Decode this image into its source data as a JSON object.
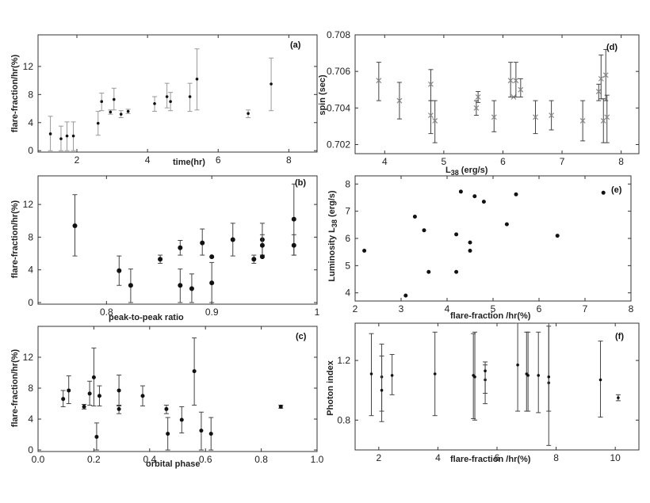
{
  "figure": {
    "description_colors": {
      "axis": "#333333",
      "marker": "#111111",
      "marker_gray": "#888888"
    }
  },
  "chart_data": [
    {
      "id": "a",
      "type": "scatter",
      "tag": "(a)",
      "xlabel": "time(hr)",
      "ylabel": "flare-fraction/hr(%)",
      "xlim": [
        0.9,
        8.8
      ],
      "ylim": [
        -0.2,
        16.5
      ],
      "xticks": [
        2,
        4,
        6,
        8
      ],
      "yticks": [
        0,
        4,
        8,
        12
      ],
      "marker": "small",
      "error_style": "light",
      "points": [
        {
          "x": 1.25,
          "y": 2.4,
          "lo": 0.0,
          "hi": 4.9
        },
        {
          "x": 1.55,
          "y": 1.7,
          "lo": 0.0,
          "hi": 3.5
        },
        {
          "x": 1.72,
          "y": 2.1,
          "lo": 0.0,
          "hi": 4.1
        },
        {
          "x": 1.9,
          "y": 2.1,
          "lo": 0.0,
          "hi": 4.1
        },
        {
          "x": 2.6,
          "y": 3.9,
          "lo": 2.2,
          "hi": 5.6
        },
        {
          "x": 2.7,
          "y": 7.0,
          "lo": 5.7,
          "hi": 8.2
        },
        {
          "x": 2.95,
          "y": 5.5,
          "lo": 5.2,
          "hi": 5.8
        },
        {
          "x": 3.05,
          "y": 7.3,
          "lo": 5.8,
          "hi": 8.9
        },
        {
          "x": 3.25,
          "y": 5.2,
          "lo": 4.7,
          "hi": 5.7
        },
        {
          "x": 3.45,
          "y": 5.6,
          "lo": 5.3,
          "hi": 5.9
        },
        {
          "x": 4.2,
          "y": 6.7,
          "lo": 5.6,
          "hi": 7.7
        },
        {
          "x": 4.55,
          "y": 7.7,
          "lo": 6.1,
          "hi": 9.6
        },
        {
          "x": 4.65,
          "y": 7.0,
          "lo": 5.7,
          "hi": 8.3
        },
        {
          "x": 5.2,
          "y": 7.7,
          "lo": 5.6,
          "hi": 9.6
        },
        {
          "x": 5.4,
          "y": 10.2,
          "lo": 5.8,
          "hi": 14.5
        },
        {
          "x": 6.85,
          "y": 5.3,
          "lo": 4.7,
          "hi": 5.8
        },
        {
          "x": 7.5,
          "y": 9.5,
          "lo": 5.7,
          "hi": 13.2
        }
      ]
    },
    {
      "id": "b",
      "type": "scatter",
      "tag": "(b)",
      "xlabel": "peak-to-peak ratio",
      "ylabel": "flare-fraction/hr(%)",
      "xlim": [
        0.735,
        1.0
      ],
      "ylim": [
        -0.2,
        15.5
      ],
      "xticks": [
        0.8,
        0.9,
        1.0
      ],
      "yticks": [
        0,
        4,
        8,
        12
      ],
      "marker": "large",
      "error_style": "dark",
      "points": [
        {
          "x": 0.77,
          "y": 9.4,
          "lo": 5.7,
          "hi": 13.2
        },
        {
          "x": 0.812,
          "y": 3.9,
          "lo": 2.1,
          "hi": 5.7
        },
        {
          "x": 0.823,
          "y": 2.1,
          "lo": 0.0,
          "hi": 4.1
        },
        {
          "x": 0.851,
          "y": 5.3,
          "lo": 4.8,
          "hi": 5.8
        },
        {
          "x": 0.87,
          "y": 6.7,
          "lo": 5.8,
          "hi": 7.6
        },
        {
          "x": 0.87,
          "y": 2.1,
          "lo": 0.0,
          "hi": 4.1
        },
        {
          "x": 0.881,
          "y": 1.7,
          "lo": 0.0,
          "hi": 3.5
        },
        {
          "x": 0.891,
          "y": 7.3,
          "lo": 5.8,
          "hi": 9.0
        },
        {
          "x": 0.9,
          "y": 5.6,
          "lo": 5.6,
          "hi": 5.6
        },
        {
          "x": 0.9,
          "y": 2.4,
          "lo": 0.0,
          "hi": 4.9
        },
        {
          "x": 0.92,
          "y": 7.7,
          "lo": 5.7,
          "hi": 9.7
        },
        {
          "x": 0.94,
          "y": 5.3,
          "lo": 4.8,
          "hi": 5.8
        },
        {
          "x": 0.948,
          "y": 7.7,
          "lo": 5.8,
          "hi": 9.7
        },
        {
          "x": 0.948,
          "y": 7.0,
          "lo": 5.8,
          "hi": 8.3
        },
        {
          "x": 0.948,
          "y": 5.6,
          "lo": 5.6,
          "hi": 5.6
        },
        {
          "x": 0.978,
          "y": 10.2,
          "lo": 5.8,
          "hi": 14.5
        },
        {
          "x": 0.978,
          "y": 7.0,
          "lo": 5.8,
          "hi": 8.3
        }
      ]
    },
    {
      "id": "c",
      "type": "scatter",
      "tag": "(c)",
      "xlabel": "orbital phase",
      "ylabel": "flare-fraction/hr(%)",
      "xlim": [
        0.0,
        1.0
      ],
      "ylim": [
        -0.2,
        16.0
      ],
      "xticks": [
        0.0,
        0.2,
        0.4,
        0.6,
        0.8,
        1.0
      ],
      "yticks": [
        0,
        4,
        8,
        12
      ],
      "xtick_labels": [
        "0.0",
        "0.2",
        "0.4",
        "0.6",
        "0.8",
        "1.0"
      ],
      "marker": "medium",
      "error_style": "dark",
      "points": [
        {
          "x": 0.09,
          "y": 6.6,
          "lo": 5.6,
          "hi": 7.7
        },
        {
          "x": 0.11,
          "y": 7.7,
          "lo": 6.0,
          "hi": 9.6
        },
        {
          "x": 0.165,
          "y": 5.6,
          "lo": 5.3,
          "hi": 5.9
        },
        {
          "x": 0.185,
          "y": 7.3,
          "lo": 5.8,
          "hi": 8.9
        },
        {
          "x": 0.2,
          "y": 9.4,
          "lo": 5.7,
          "hi": 13.2
        },
        {
          "x": 0.21,
          "y": 1.7,
          "lo": 0.0,
          "hi": 3.5
        },
        {
          "x": 0.22,
          "y": 7.0,
          "lo": 5.7,
          "hi": 8.3
        },
        {
          "x": 0.29,
          "y": 7.7,
          "lo": 5.7,
          "hi": 9.7
        },
        {
          "x": 0.29,
          "y": 5.3,
          "lo": 4.7,
          "hi": 5.8
        },
        {
          "x": 0.375,
          "y": 7.0,
          "lo": 5.7,
          "hi": 8.3
        },
        {
          "x": 0.46,
          "y": 5.3,
          "lo": 4.7,
          "hi": 5.8
        },
        {
          "x": 0.465,
          "y": 2.1,
          "lo": 0.0,
          "hi": 4.2
        },
        {
          "x": 0.515,
          "y": 3.9,
          "lo": 2.2,
          "hi": 5.6
        },
        {
          "x": 0.56,
          "y": 10.2,
          "lo": 5.8,
          "hi": 14.5
        },
        {
          "x": 0.585,
          "y": 2.5,
          "lo": 0.0,
          "hi": 4.9
        },
        {
          "x": 0.62,
          "y": 2.1,
          "lo": 0.0,
          "hi": 4.2
        },
        {
          "x": 0.87,
          "y": 5.6,
          "lo": 5.4,
          "hi": 5.8
        }
      ]
    },
    {
      "id": "d",
      "type": "scatter",
      "tag": "(d)",
      "xlabel": "L38 (erg/s)",
      "ylabel": "spin (sec)",
      "xlim": [
        3.5,
        8.3
      ],
      "ylim": [
        0.7015,
        0.708
      ],
      "xticks": [
        4,
        5,
        6,
        7,
        8
      ],
      "yticks": [
        0.702,
        0.704,
        0.706,
        0.708
      ],
      "ytick_labels": [
        "0.702",
        "0.704",
        "0.706",
        "0.708"
      ],
      "marker": "cross",
      "error_style": "dark",
      "points": [
        {
          "x": 3.9,
          "y": 0.7055,
          "lo": 0.7044,
          "hi": 0.7065
        },
        {
          "x": 4.25,
          "y": 0.7044,
          "lo": 0.7034,
          "hi": 0.7054
        },
        {
          "x": 4.78,
          "y": 0.7053,
          "lo": 0.7044,
          "hi": 0.7061
        },
        {
          "x": 4.78,
          "y": 0.7036,
          "lo": 0.7026,
          "hi": 0.7044
        },
        {
          "x": 4.85,
          "y": 0.7033,
          "lo": 0.7021,
          "hi": 0.7044
        },
        {
          "x": 5.55,
          "y": 0.704,
          "lo": 0.7036,
          "hi": 0.7044
        },
        {
          "x": 5.58,
          "y": 0.7046,
          "lo": 0.7043,
          "hi": 0.7049
        },
        {
          "x": 5.85,
          "y": 0.7035,
          "lo": 0.7027,
          "hi": 0.7044
        },
        {
          "x": 6.13,
          "y": 0.7055,
          "lo": 0.7046,
          "hi": 0.7065
        },
        {
          "x": 6.18,
          "y": 0.7046,
          "lo": 0.7046,
          "hi": 0.7046
        },
        {
          "x": 6.22,
          "y": 0.7055,
          "lo": 0.7046,
          "hi": 0.7065
        },
        {
          "x": 6.3,
          "y": 0.705,
          "lo": 0.7046,
          "hi": 0.7056
        },
        {
          "x": 6.55,
          "y": 0.7035,
          "lo": 0.7026,
          "hi": 0.7044
        },
        {
          "x": 6.82,
          "y": 0.7036,
          "lo": 0.7028,
          "hi": 0.7044
        },
        {
          "x": 7.35,
          "y": 0.7033,
          "lo": 0.7022,
          "hi": 0.7044
        },
        {
          "x": 7.62,
          "y": 0.7049,
          "lo": 0.7044,
          "hi": 0.7053
        },
        {
          "x": 7.66,
          "y": 0.7056,
          "lo": 0.7045,
          "hi": 0.7069
        },
        {
          "x": 7.7,
          "y": 0.7033,
          "lo": 0.7021,
          "hi": 0.7045
        },
        {
          "x": 7.74,
          "y": 0.7058,
          "lo": 0.7044,
          "hi": 0.7072
        },
        {
          "x": 7.76,
          "y": 0.7035,
          "lo": 0.7021,
          "hi": 0.7047
        }
      ]
    },
    {
      "id": "e",
      "type": "scatter",
      "tag": "(e)",
      "xlabel": "flare-fraction /hr(%)",
      "ylabel": "Luminosity L38 (erg/s)",
      "xlim": [
        2.0,
        8.0
      ],
      "ylim": [
        3.7,
        8.3
      ],
      "xticks": [
        2,
        3,
        4,
        5,
        6,
        7,
        8
      ],
      "yticks": [
        4,
        5,
        6,
        7,
        8
      ],
      "marker": "medium",
      "error_style": "none",
      "points": [
        {
          "x": 2.2,
          "y": 5.55
        },
        {
          "x": 3.1,
          "y": 3.9
        },
        {
          "x": 3.3,
          "y": 6.8
        },
        {
          "x": 3.5,
          "y": 6.3
        },
        {
          "x": 3.6,
          "y": 4.77
        },
        {
          "x": 4.2,
          "y": 6.15
        },
        {
          "x": 4.2,
          "y": 4.77
        },
        {
          "x": 4.3,
          "y": 7.72
        },
        {
          "x": 4.5,
          "y": 5.85
        },
        {
          "x": 4.5,
          "y": 5.55
        },
        {
          "x": 4.6,
          "y": 7.55
        },
        {
          "x": 4.8,
          "y": 7.35
        },
        {
          "x": 5.3,
          "y": 6.52
        },
        {
          "x": 5.5,
          "y": 7.62
        },
        {
          "x": 6.4,
          "y": 6.1
        },
        {
          "x": 7.4,
          "y": 7.68
        }
      ]
    },
    {
      "id": "f",
      "type": "scatter",
      "tag": "(f)",
      "xlabel": "flare-fraction /hr(%)",
      "ylabel": "Photon index",
      "xlim": [
        1.2,
        10.8
      ],
      "ylim": [
        0.6,
        1.45
      ],
      "xticks": [
        2,
        4,
        6,
        8,
        10
      ],
      "yticks": [
        0.8,
        1.2
      ],
      "ytick_labels": [
        "0.8",
        "1.2"
      ],
      "marker": "small",
      "error_style": "dark",
      "points": [
        {
          "x": 1.75,
          "y": 1.11,
          "lo": 0.83,
          "hi": 1.38
        },
        {
          "x": 2.1,
          "y": 1.09,
          "lo": 0.86,
          "hi": 1.31
        },
        {
          "x": 2.1,
          "y": 1.0,
          "lo": 0.79,
          "hi": 1.23
        },
        {
          "x": 2.45,
          "y": 1.1,
          "lo": 0.97,
          "hi": 1.24
        },
        {
          "x": 3.9,
          "y": 1.11,
          "lo": 0.83,
          "hi": 1.39
        },
        {
          "x": 5.2,
          "y": 1.1,
          "lo": 0.81,
          "hi": 1.38
        },
        {
          "x": 5.25,
          "y": 1.09,
          "lo": 0.8,
          "hi": 1.39
        },
        {
          "x": 5.6,
          "y": 1.07,
          "lo": 0.91,
          "hi": 1.17
        },
        {
          "x": 5.6,
          "y": 1.13,
          "lo": 0.98,
          "hi": 1.19
        },
        {
          "x": 6.7,
          "y": 1.17,
          "lo": 0.86,
          "hi": 1.45
        },
        {
          "x": 7.0,
          "y": 1.11,
          "lo": 0.86,
          "hi": 1.39
        },
        {
          "x": 7.05,
          "y": 1.1,
          "lo": 0.86,
          "hi": 1.39
        },
        {
          "x": 7.4,
          "y": 1.1,
          "lo": 0.85,
          "hi": 1.39
        },
        {
          "x": 7.75,
          "y": 1.05,
          "lo": 0.63,
          "hi": 1.45
        },
        {
          "x": 7.75,
          "y": 1.09,
          "lo": 0.86,
          "hi": 1.43
        },
        {
          "x": 9.5,
          "y": 1.07,
          "lo": 0.82,
          "hi": 1.33
        },
        {
          "x": 10.1,
          "y": 0.95,
          "lo": 0.93,
          "hi": 0.97
        }
      ]
    }
  ]
}
